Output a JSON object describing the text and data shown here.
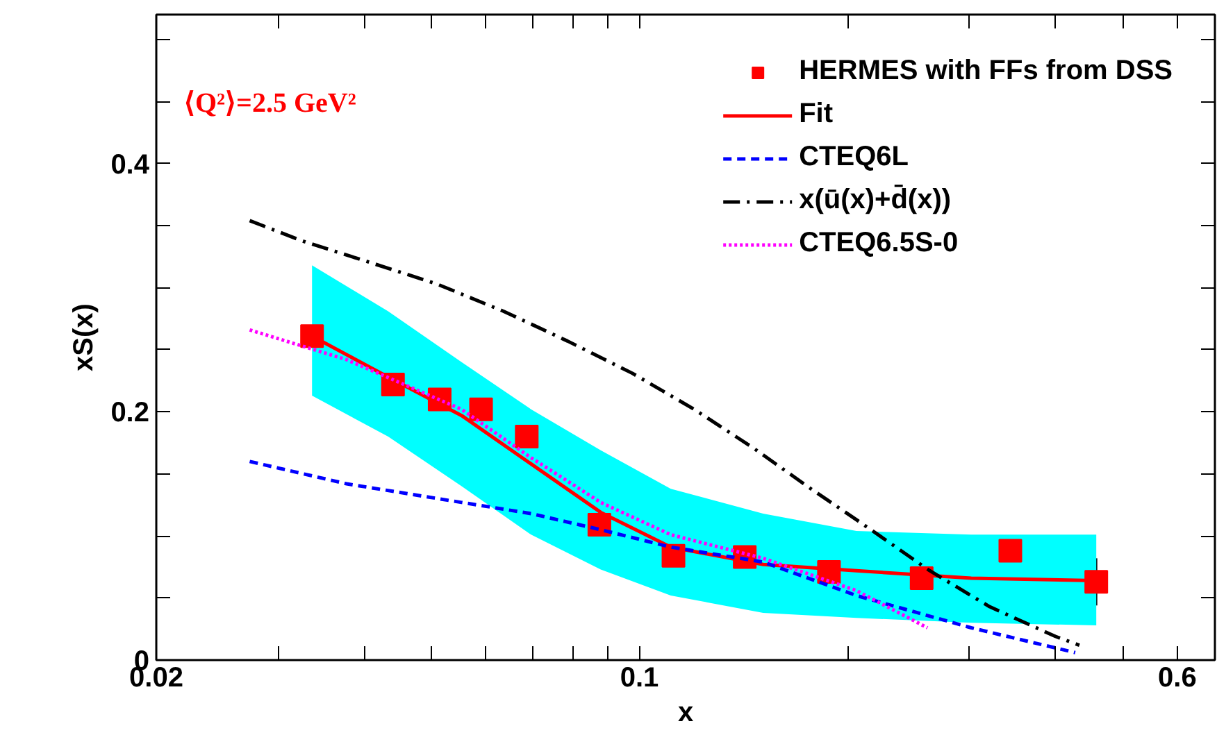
{
  "chart_data": {
    "type": "line",
    "xlabel": "x",
    "ylabel": "xS(x)",
    "log": "x",
    "xlim": [
      0.02,
      0.68
    ],
    "ylim": [
      0,
      0.52
    ],
    "xticks": [
      0.02,
      {
        "value": 0.03,
        "label": null
      },
      {
        "value": 0.04,
        "label": null
      },
      {
        "value": 0.05,
        "label": null
      },
      {
        "value": 0.06,
        "label": null
      },
      {
        "value": 0.07,
        "label": null
      },
      {
        "value": 0.08,
        "label": null
      },
      {
        "value": 0.09,
        "label": null
      },
      0.1,
      {
        "value": 0.2,
        "label": null
      },
      {
        "value": 0.3,
        "label": null
      },
      {
        "value": 0.4,
        "label": null
      },
      {
        "value": 0.5,
        "label": null
      },
      0.6
    ],
    "yticks": [
      0,
      {
        "value": 0.05,
        "label": null
      },
      {
        "value": 0.1,
        "label": null
      },
      {
        "value": 0.15,
        "label": null
      },
      0.2,
      {
        "value": 0.25,
        "label": null
      },
      {
        "value": 0.3,
        "label": null
      },
      {
        "value": 0.35,
        "label": null
      },
      0.4,
      {
        "value": 0.45,
        "label": null
      },
      {
        "value": 0.5,
        "label": null
      }
    ],
    "annotations": [
      "⟨Q²⟩=2.5 GeV²"
    ],
    "legend": "top right",
    "grid": false,
    "series": [
      {
        "name": "HERMES with FFs from DSS",
        "type": "scatter",
        "marker": "square",
        "color": "#ff0000",
        "x": [
          0.0336,
          0.044,
          0.0514,
          0.059,
          0.0687,
          0.0875,
          0.112,
          0.142,
          0.188,
          0.256,
          0.344,
          0.458
        ],
        "values": [
          0.261,
          0.222,
          0.21,
          0.202,
          0.18,
          0.109,
          0.084,
          0.083,
          0.071,
          0.066,
          0.088,
          0.063
        ],
        "errors": [
          null,
          null,
          null,
          null,
          null,
          null,
          null,
          null,
          null,
          null,
          0.012,
          0.019
        ]
      },
      {
        "name": "Fit",
        "line_style": "solid",
        "color": "#ff0000",
        "x": [
          0.0336,
          0.0433,
          0.0553,
          0.0697,
          0.0879,
          0.111,
          0.151,
          0.206,
          0.302,
          0.458
        ],
        "values": [
          0.261,
          0.228,
          0.197,
          0.158,
          0.119,
          0.091,
          0.077,
          0.072,
          0.066,
          0.064
        ],
        "lower": [
          0.213,
          0.18,
          0.14,
          0.101,
          0.073,
          0.052,
          0.038,
          0.034,
          0.03,
          0.028
        ],
        "upper": [
          0.318,
          0.281,
          0.24,
          0.202,
          0.169,
          0.138,
          0.118,
          0.104,
          0.101,
          0.101
        ]
      },
      {
        "name": "CTEQ6L",
        "line_style": "dashed",
        "color": "#0000ff",
        "x": [
          0.0273,
          0.0377,
          0.0553,
          0.0697,
          0.0879,
          0.111,
          0.151,
          0.206,
          0.302,
          0.427
        ],
        "values": [
          0.16,
          0.142,
          0.127,
          0.118,
          0.105,
          0.091,
          0.079,
          0.052,
          0.026,
          0.006
        ]
      },
      {
        "name": "x(ū(x)+d̄(x))",
        "line_style": "dashdot",
        "color": "#000000",
        "x": [
          0.0273,
          0.0324,
          0.0404,
          0.0509,
          0.0636,
          0.0787,
          0.0977,
          0.12,
          0.146,
          0.177,
          0.215,
          0.263,
          0.321,
          0.4,
          0.433
        ],
        "values": [
          0.354,
          0.338,
          0.321,
          0.303,
          0.281,
          0.257,
          0.231,
          0.202,
          0.171,
          0.138,
          0.106,
          0.072,
          0.043,
          0.019,
          0.012
        ]
      },
      {
        "name": "CTEQ6.5S-0",
        "line_style": "dotted",
        "color": "#ff00ff",
        "x": [
          0.0273,
          0.0377,
          0.0553,
          0.0697,
          0.0879,
          0.111,
          0.151,
          0.206,
          0.261
        ],
        "values": [
          0.266,
          0.242,
          0.202,
          0.163,
          0.127,
          0.101,
          0.082,
          0.056,
          0.026
        ]
      }
    ]
  }
}
